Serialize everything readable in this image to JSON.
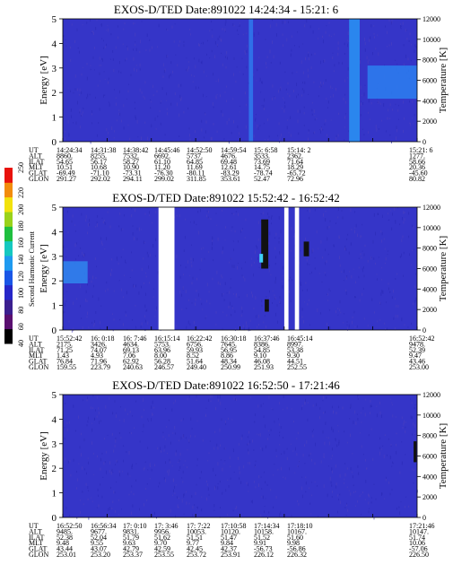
{
  "chart_data": [
    {
      "type": "heatmap",
      "title": "EXOS-D/TED   Date:891022  14:24:34 - 15:21: 6",
      "ylabel": "Energy [eV]",
      "y2label": "Temperature [K]",
      "ylim": [
        0,
        5
      ],
      "yticks": [
        0,
        1,
        2,
        3,
        4,
        5
      ],
      "y2lim": [
        0,
        12000
      ],
      "y2ticks": [
        0,
        2000,
        4000,
        6000,
        8000,
        10000,
        12000
      ],
      "background": "#3535c8",
      "features": [
        {
          "kind": "streak",
          "x": 0.525,
          "width": 0.012,
          "y0": 0.0,
          "y1": 1.0,
          "color": "#2f6fe8"
        },
        {
          "kind": "streak",
          "x": 0.808,
          "width": 0.03,
          "y0": 0.0,
          "y1": 1.0,
          "color": "#2a86ee"
        },
        {
          "kind": "blob",
          "x": 0.86,
          "width": 0.14,
          "y0": 0.35,
          "y1": 0.62,
          "color": "#2b7ff0"
        }
      ],
      "ephemeris": {
        "labels": [
          "UT",
          "ALT",
          "ILAT",
          "MLT",
          "GLAT",
          "GLON"
        ],
        "columns": [
          [
            "14:24:34",
            "8860.",
            "54.65",
            "10.51",
            "-69.49",
            "291.27"
          ],
          [
            "14:31:38",
            "8255.",
            "56.17",
            "10.68",
            "-71.10",
            "292.02"
          ],
          [
            "14:38:42",
            "7532.",
            "58.27",
            "10.90",
            "-73.31",
            "294.11"
          ],
          [
            "14:45:46",
            "6692.",
            "61.10",
            "11.20",
            "-76.30",
            "299.02"
          ],
          [
            "14:52:50",
            "5737.",
            "64.85",
            "11.69",
            "-80.11",
            "311.85"
          ],
          [
            "14:59:54",
            "4676.",
            "69.48",
            "12.61",
            "-83.29",
            "353.61"
          ],
          [
            "15: 6:58",
            "3533.",
            "73.69",
            "14.75",
            "-78.74",
            "52.47"
          ],
          [
            "15:14: 2",
            "2362.",
            "71.64",
            "18.29",
            "-65.72",
            "72.96"
          ],
          [
            "15:21: 6",
            "1277.",
            "58.66",
            "20.36",
            "-45.60",
            "80.82"
          ]
        ]
      }
    },
    {
      "type": "heatmap",
      "title": "EXOS-D/TED   Date:891022  15:52:42 - 16:52:42",
      "ylabel": "Energy [eV]",
      "y2label": "Temperature [K]",
      "ylim": [
        0,
        5
      ],
      "yticks": [
        0,
        1,
        2,
        3,
        4,
        5
      ],
      "y2lim": [
        0,
        12000
      ],
      "y2ticks": [
        0,
        2000,
        4000,
        6000,
        8000,
        10000,
        12000
      ],
      "background": "#3535c8",
      "features": [
        {
          "kind": "blob",
          "x": 0.0,
          "width": 0.07,
          "y0": 0.38,
          "y1": 0.56,
          "color": "#2f86ee"
        },
        {
          "kind": "gap",
          "x": 0.27,
          "width": 0.045,
          "y0": 0.0,
          "y1": 1.0,
          "color": "#ffffff"
        },
        {
          "kind": "gap",
          "x": 0.625,
          "width": 0.012,
          "y0": 0.0,
          "y1": 1.0,
          "color": "#ffffff"
        },
        {
          "kind": "gap",
          "x": 0.655,
          "width": 0.012,
          "y0": 0.0,
          "y1": 1.0,
          "color": "#ffffff"
        },
        {
          "kind": "speck",
          "x": 0.56,
          "width": 0.02,
          "y0": 0.5,
          "y1": 0.9,
          "color": "#111111"
        },
        {
          "kind": "speck",
          "x": 0.57,
          "width": 0.012,
          "y0": 0.15,
          "y1": 0.25,
          "color": "#111111"
        },
        {
          "kind": "speck",
          "x": 0.68,
          "width": 0.015,
          "y0": 0.6,
          "y1": 0.72,
          "color": "#111111"
        },
        {
          "kind": "speck",
          "x": 0.555,
          "width": 0.01,
          "y0": 0.55,
          "y1": 0.62,
          "color": "#3fd0f5"
        }
      ],
      "ephemeris": {
        "labels": [
          "UT",
          "ALT",
          "ILAT",
          "MLT",
          "GLAT",
          "GLON"
        ],
        "columns": [
          [
            "15:52:42",
            "2175.",
            "71.25",
            "1.43",
            "76.84",
            "159.55"
          ],
          [
            "16: 0:18",
            "3426.",
            "74.07",
            "4.93",
            "71.96",
            "223.79"
          ],
          [
            "16: 7:46",
            "4634.",
            "69.13",
            "7.06",
            "62.92",
            "240.63"
          ],
          [
            "16:15:14",
            "5753.",
            "63.96",
            "8.00",
            "56.28",
            "246.57"
          ],
          [
            "16:22:42",
            "6756.",
            "59.93",
            "8.52",
            "51.64",
            "249.40"
          ],
          [
            "16:30:18",
            "7645.",
            "56.95",
            "8.86",
            "48.34",
            "250.99"
          ],
          [
            "16:37:46",
            "8386.",
            "54.85",
            "9.10",
            "46.08",
            "251.93"
          ],
          [
            "16:45:14",
            "8997.",
            "53.38",
            "9.30",
            "44.51",
            "252.55"
          ],
          [
            "16:52:42",
            "9478.",
            "52.39",
            "9.47",
            "43.46",
            "253.00"
          ]
        ]
      }
    },
    {
      "type": "heatmap",
      "title": "EXOS-D/TED   Date:891022  16:52:50 - 17:21:46",
      "ylabel": "Energy [eV]",
      "y2label": "Temperature [K]",
      "ylim": [
        0,
        5
      ],
      "yticks": [
        0,
        1,
        2,
        3,
        4,
        5
      ],
      "y2lim": [
        0,
        12000
      ],
      "y2ticks": [
        0,
        2000,
        4000,
        6000,
        8000,
        10000,
        12000
      ],
      "background": "#3535c8",
      "features": [
        {
          "kind": "speck",
          "x": 0.99,
          "width": 0.008,
          "y0": 0.45,
          "y1": 0.62,
          "color": "#111111"
        }
      ],
      "ephemeris": {
        "labels": [
          "UT",
          "ALT",
          "ILAT",
          "MLT",
          "GLAT",
          "GLON"
        ],
        "columns": [
          [
            "16:52:50",
            "9485.",
            "52.38",
            "9.48",
            "43.44",
            "253.01"
          ],
          [
            "16:56:34",
            "9677.",
            "52.04",
            "9.55",
            "43.07",
            "253.20"
          ],
          [
            "17: 0:10",
            "9831.",
            "51.79",
            "9.63",
            "42.79",
            "253.37"
          ],
          [
            "17: 3:46",
            "9956.",
            "51.62",
            "9.70",
            "42.59",
            "253.55"
          ],
          [
            "17: 7:22",
            "10053.",
            "51.51",
            "9.77",
            "42.45",
            "253.72"
          ],
          [
            "17:10:58",
            "10120.",
            "51.47",
            "9.84",
            "42.37",
            "253.91"
          ],
          [
            "17:14:34",
            "10158.",
            "51.52",
            "9.91",
            "-56.73",
            "226.12"
          ],
          [
            "17:18:10",
            "10167.",
            "51.60",
            "9.98",
            "-56.86",
            "226.32"
          ],
          [
            "17:21:46",
            "10147.",
            "51.74",
            "10.06",
            "-57.06",
            "226.50"
          ]
        ]
      }
    }
  ],
  "colorbar": {
    "label": "Second Harmonic Current",
    "min": 40,
    "max": 250,
    "ticks": [
      40,
      60,
      80,
      100,
      120,
      140,
      160,
      180,
      200,
      220,
      250
    ],
    "colors": [
      "#000000",
      "#5a0f70",
      "#3b1f8f",
      "#2727c8",
      "#1a56e6",
      "#1f9af0",
      "#15c8c0",
      "#1fbf3f",
      "#9ad21a",
      "#f2e20c",
      "#f28c0c",
      "#e8120c"
    ]
  }
}
